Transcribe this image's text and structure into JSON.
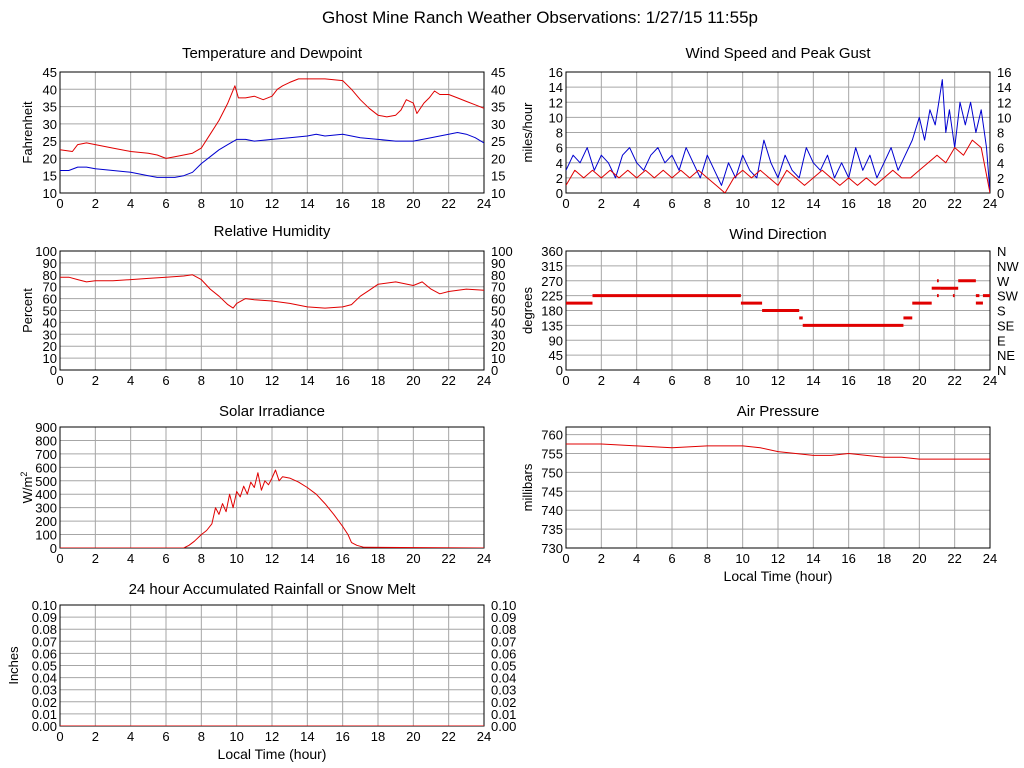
{
  "page_title": "Ghost Mine Ranch Weather Observations: 1/27/15 11:55p",
  "colors": {
    "red": "#e00000",
    "blue": "#0000d0",
    "grid": "#a6a6a6"
  },
  "chart_data": [
    {
      "id": "temperature",
      "type": "line",
      "title": "Temperature and Dewpoint",
      "ylabel": "Fahrenheit",
      "xlabel": "",
      "xlim": [
        0,
        24
      ],
      "ylim": [
        10,
        45
      ],
      "xticks": [
        0,
        2,
        4,
        6,
        8,
        10,
        12,
        14,
        16,
        18,
        20,
        22,
        24
      ],
      "yticks": [
        10,
        15,
        20,
        25,
        30,
        35,
        40,
        45
      ],
      "right_axis": true,
      "grid": true,
      "series": [
        {
          "color": "red",
          "x": [
            0,
            0.7,
            1,
            1.5,
            2,
            3,
            4,
            5,
            5.5,
            6,
            6.5,
            7,
            7.5,
            8,
            8.5,
            9,
            9.5,
            9.9,
            10.1,
            10.5,
            11,
            11.5,
            12,
            12.3,
            12.6,
            13,
            13.5,
            14,
            15,
            16,
            16.5,
            17,
            17.5,
            18,
            18.5,
            19,
            19.3,
            19.6,
            20,
            20.2,
            20.6,
            20.9,
            21.2,
            21.5,
            22,
            22.5,
            23,
            23.5,
            24
          ],
          "y": [
            22.5,
            22,
            24,
            24.5,
            24,
            23,
            22,
            21.5,
            21,
            20,
            20.5,
            21,
            21.5,
            23,
            27,
            31,
            36,
            41,
            37.5,
            37.5,
            38,
            37,
            38,
            40,
            41,
            42,
            43,
            43,
            43,
            42.5,
            40,
            37,
            34.5,
            32.5,
            32,
            32.5,
            34,
            37,
            36,
            33,
            36,
            37.5,
            39.5,
            38.5,
            38.5,
            37.5,
            36.5,
            35.5,
            34.5
          ]
        },
        {
          "color": "blue",
          "x": [
            0,
            0.5,
            1,
            1.5,
            2,
            3,
            4,
            5,
            5.5,
            6,
            6.5,
            7,
            7.5,
            8,
            8.5,
            9,
            9.5,
            10,
            10.5,
            11,
            12,
            13,
            14,
            14.5,
            15,
            16,
            17,
            18,
            19,
            20,
            21,
            21.5,
            22,
            22.5,
            23,
            23.5,
            24
          ],
          "y": [
            16.5,
            16.5,
            17.5,
            17.5,
            17,
            16.5,
            16,
            15,
            14.5,
            14.5,
            14.5,
            15,
            16,
            18.5,
            20.5,
            22.5,
            24,
            25.5,
            25.5,
            25,
            25.5,
            26,
            26.5,
            27,
            26.5,
            27,
            26,
            25.5,
            25,
            25,
            26,
            26.5,
            27,
            27.5,
            27,
            26,
            24.5
          ]
        }
      ]
    },
    {
      "id": "wind-speed",
      "type": "line",
      "title": "Wind Speed and Peak Gust",
      "ylabel": "miles/hour",
      "xlabel": "",
      "xlim": [
        0,
        24
      ],
      "ylim": [
        0,
        16
      ],
      "xticks": [
        0,
        2,
        4,
        6,
        8,
        10,
        12,
        14,
        16,
        18,
        20,
        22,
        24
      ],
      "yticks": [
        0,
        2,
        4,
        6,
        8,
        10,
        12,
        14,
        16
      ],
      "right_axis": true,
      "grid": true,
      "series": [
        {
          "color": "blue",
          "x": [
            0,
            0.4,
            0.8,
            1.2,
            1.6,
            2,
            2.4,
            2.8,
            3.2,
            3.6,
            4,
            4.4,
            4.8,
            5.2,
            5.6,
            6,
            6.4,
            6.8,
            7.2,
            7.6,
            8,
            8.4,
            8.8,
            9.2,
            9.6,
            10,
            10.4,
            10.8,
            11.2,
            11.6,
            12,
            12.4,
            12.8,
            13.2,
            13.6,
            14,
            14.4,
            14.8,
            15.2,
            15.6,
            16,
            16.4,
            16.8,
            17.2,
            17.6,
            18,
            18.4,
            18.8,
            19.2,
            19.6,
            20,
            20.3,
            20.6,
            20.9,
            21.1,
            21.3,
            21.5,
            21.7,
            22,
            22.3,
            22.6,
            22.9,
            23.2,
            23.5,
            23.8,
            24
          ],
          "y": [
            3,
            5,
            4,
            6,
            3,
            5,
            4,
            2,
            5,
            6,
            4,
            3,
            5,
            6,
            4,
            5,
            3,
            6,
            4,
            2,
            5,
            3,
            1,
            4,
            2,
            5,
            3,
            2,
            7,
            4,
            2,
            5,
            3,
            2,
            6,
            4,
            3,
            5,
            2,
            4,
            2,
            6,
            3,
            5,
            2,
            4,
            6,
            3,
            5,
            7,
            10,
            7,
            11,
            9,
            12,
            15,
            8,
            11,
            6,
            12,
            9,
            12,
            8,
            11,
            6,
            0
          ]
        },
        {
          "color": "red",
          "x": [
            0,
            0.5,
            1,
            1.5,
            2,
            2.5,
            3,
            3.5,
            4,
            4.5,
            5,
            5.5,
            6,
            6.5,
            7,
            7.5,
            8,
            8.5,
            9,
            9.5,
            10,
            10.5,
            11,
            11.5,
            12,
            12.5,
            13,
            13.5,
            14,
            14.5,
            15,
            15.5,
            16,
            16.5,
            17,
            17.5,
            18,
            18.5,
            19,
            19.5,
            20,
            20.5,
            21,
            21.5,
            22,
            22.5,
            23,
            23.5,
            24
          ],
          "y": [
            1,
            3,
            2,
            3,
            2,
            3,
            2,
            3,
            2,
            3,
            2,
            3,
            2,
            3,
            2,
            3,
            2,
            1,
            0,
            2,
            3,
            2,
            3,
            2,
            1,
            3,
            2,
            1,
            2,
            3,
            2,
            1,
            2,
            1,
            2,
            1,
            2,
            3,
            2,
            2,
            3,
            4,
            5,
            4,
            6,
            5,
            7,
            6,
            0
          ]
        }
      ]
    },
    {
      "id": "humidity",
      "type": "line",
      "title": "Relative Humidity",
      "ylabel": "Percent",
      "xlabel": "",
      "xlim": [
        0,
        24
      ],
      "ylim": [
        0,
        100
      ],
      "xticks": [
        0,
        2,
        4,
        6,
        8,
        10,
        12,
        14,
        16,
        18,
        20,
        22,
        24
      ],
      "yticks": [
        0,
        10,
        20,
        30,
        40,
        50,
        60,
        70,
        80,
        90,
        100
      ],
      "right_axis": true,
      "grid": true,
      "series": [
        {
          "color": "red",
          "x": [
            0,
            0.5,
            1,
            1.5,
            2,
            3,
            4,
            5,
            6,
            7,
            7.5,
            8,
            8.5,
            9,
            9.5,
            9.8,
            10,
            10.5,
            11,
            12,
            13,
            14,
            15,
            16,
            16.5,
            17,
            17.5,
            18,
            19,
            20,
            20.5,
            21,
            21.5,
            22,
            23,
            24
          ],
          "y": [
            78,
            78,
            76,
            74,
            75,
            75,
            76,
            77,
            78,
            79,
            80,
            76,
            68,
            62,
            55,
            52,
            56,
            60,
            59,
            58,
            56,
            53,
            52,
            53,
            55,
            62,
            67,
            72,
            74,
            71,
            74,
            68,
            64,
            66,
            68,
            67
          ]
        }
      ]
    },
    {
      "id": "wind-direction",
      "type": "scatter",
      "title": "Wind Direction",
      "ylabel": "degrees",
      "xlabel": "",
      "xlim": [
        0,
        24
      ],
      "ylim": [
        0,
        360
      ],
      "xticks": [
        0,
        2,
        4,
        6,
        8,
        10,
        12,
        14,
        16,
        18,
        20,
        22,
        24
      ],
      "yticks": [
        0,
        45,
        90,
        135,
        180,
        225,
        270,
        315,
        360
      ],
      "right_tick_labels": [
        "N",
        "NE",
        "E",
        "SE",
        "S",
        "SW",
        "W",
        "NW",
        "N"
      ],
      "right_axis": true,
      "grid": true,
      "segments": [
        {
          "x0": 0,
          "x1": 1.5,
          "y": 202.5
        },
        {
          "x0": 1.5,
          "x1": 9.9,
          "y": 225
        },
        {
          "x0": 9.9,
          "x1": 11.1,
          "y": 202.5
        },
        {
          "x0": 11.1,
          "x1": 13.2,
          "y": 180
        },
        {
          "x0": 13.2,
          "x1": 13.4,
          "y": 157.5
        },
        {
          "x0": 13.4,
          "x1": 19.1,
          "y": 135
        },
        {
          "x0": 19.1,
          "x1": 19.6,
          "y": 157.5
        },
        {
          "x0": 19.6,
          "x1": 20.7,
          "y": 202.5
        },
        {
          "x0": 20.7,
          "x1": 21.2,
          "y": 247.5
        },
        {
          "x0": 21.0,
          "x1": 21.1,
          "y": 270
        },
        {
          "x0": 21.0,
          "x1": 21.1,
          "y": 225
        },
        {
          "x0": 21.2,
          "x1": 22.2,
          "y": 247.5
        },
        {
          "x0": 21.9,
          "x1": 22.0,
          "y": 225
        },
        {
          "x0": 22.2,
          "x1": 23.2,
          "y": 270
        },
        {
          "x0": 23.2,
          "x1": 23.4,
          "y": 225
        },
        {
          "x0": 23.2,
          "x1": 23.6,
          "y": 202.5
        },
        {
          "x0": 23.6,
          "x1": 24,
          "y": 225
        }
      ]
    },
    {
      "id": "solar",
      "type": "line",
      "title": "Solar Irradiance",
      "ylabel": "W/m2",
      "xlabel": "",
      "xlim": [
        0,
        24
      ],
      "ylim": [
        0,
        900
      ],
      "xticks": [
        0,
        2,
        4,
        6,
        8,
        10,
        12,
        14,
        16,
        18,
        20,
        22,
        24
      ],
      "yticks": [
        0,
        100,
        200,
        300,
        400,
        500,
        600,
        700,
        800,
        900
      ],
      "right_axis": false,
      "grid": true,
      "series": [
        {
          "color": "red",
          "x": [
            0,
            7,
            7.3,
            7.6,
            8,
            8.3,
            8.6,
            8.8,
            9,
            9.2,
            9.4,
            9.6,
            9.8,
            10,
            10.2,
            10.4,
            10.6,
            10.8,
            11,
            11.2,
            11.4,
            11.6,
            11.8,
            12,
            12.2,
            12.4,
            12.6,
            13,
            13.5,
            14,
            14.5,
            15,
            15.5,
            16,
            16.3,
            16.5,
            16.8,
            17.2,
            24
          ],
          "y": [
            0,
            0,
            20,
            50,
            100,
            130,
            180,
            300,
            250,
            330,
            270,
            400,
            300,
            420,
            380,
            460,
            400,
            490,
            450,
            560,
            430,
            500,
            470,
            520,
            580,
            500,
            530,
            520,
            490,
            450,
            400,
            330,
            250,
            160,
            100,
            40,
            20,
            5,
            0
          ]
        }
      ]
    },
    {
      "id": "pressure",
      "type": "line",
      "title": "Air Pressure",
      "ylabel": "millibars",
      "xlabel": "Local Time (hour)",
      "xlim": [
        0,
        24
      ],
      "ylim": [
        730,
        762
      ],
      "xticks": [
        0,
        2,
        4,
        6,
        8,
        10,
        12,
        14,
        16,
        18,
        20,
        22,
        24
      ],
      "yticks": [
        730,
        735,
        740,
        745,
        750,
        755,
        760
      ],
      "right_axis": false,
      "grid": true,
      "series": [
        {
          "color": "red",
          "x": [
            0,
            2,
            4,
            6,
            8,
            10,
            11,
            12,
            13,
            14,
            15,
            16,
            17,
            18,
            19,
            20,
            21,
            22,
            23,
            24
          ],
          "y": [
            757.5,
            757.5,
            757,
            756.5,
            757,
            757,
            756.5,
            755.5,
            755,
            754.5,
            754.5,
            755,
            754.5,
            754,
            754,
            753.5,
            753.5,
            753.5,
            753.5,
            753.5
          ]
        }
      ]
    },
    {
      "id": "rainfall",
      "type": "line",
      "title": "24 hour Accumulated Rainfall or Snow Melt",
      "ylabel": "Inches",
      "xlabel": "Local Time (hour)",
      "xlim": [
        0,
        24
      ],
      "ylim": [
        0,
        0.1
      ],
      "xticks": [
        0,
        2,
        4,
        6,
        8,
        10,
        12,
        14,
        16,
        18,
        20,
        22,
        24
      ],
      "yticks": [
        0,
        0.01,
        0.02,
        0.03,
        0.04,
        0.05,
        0.06,
        0.07,
        0.08,
        0.09,
        0.1
      ],
      "ytick_labels": [
        "0.00",
        "0.01",
        "0.02",
        "0.03",
        "0.04",
        "0.05",
        "0.06",
        "0.07",
        "0.08",
        "0.09",
        "0.10"
      ],
      "right_axis": true,
      "grid": true,
      "series": [
        {
          "color": "red",
          "x": [
            0,
            24
          ],
          "y": [
            0,
            0
          ]
        }
      ]
    }
  ]
}
